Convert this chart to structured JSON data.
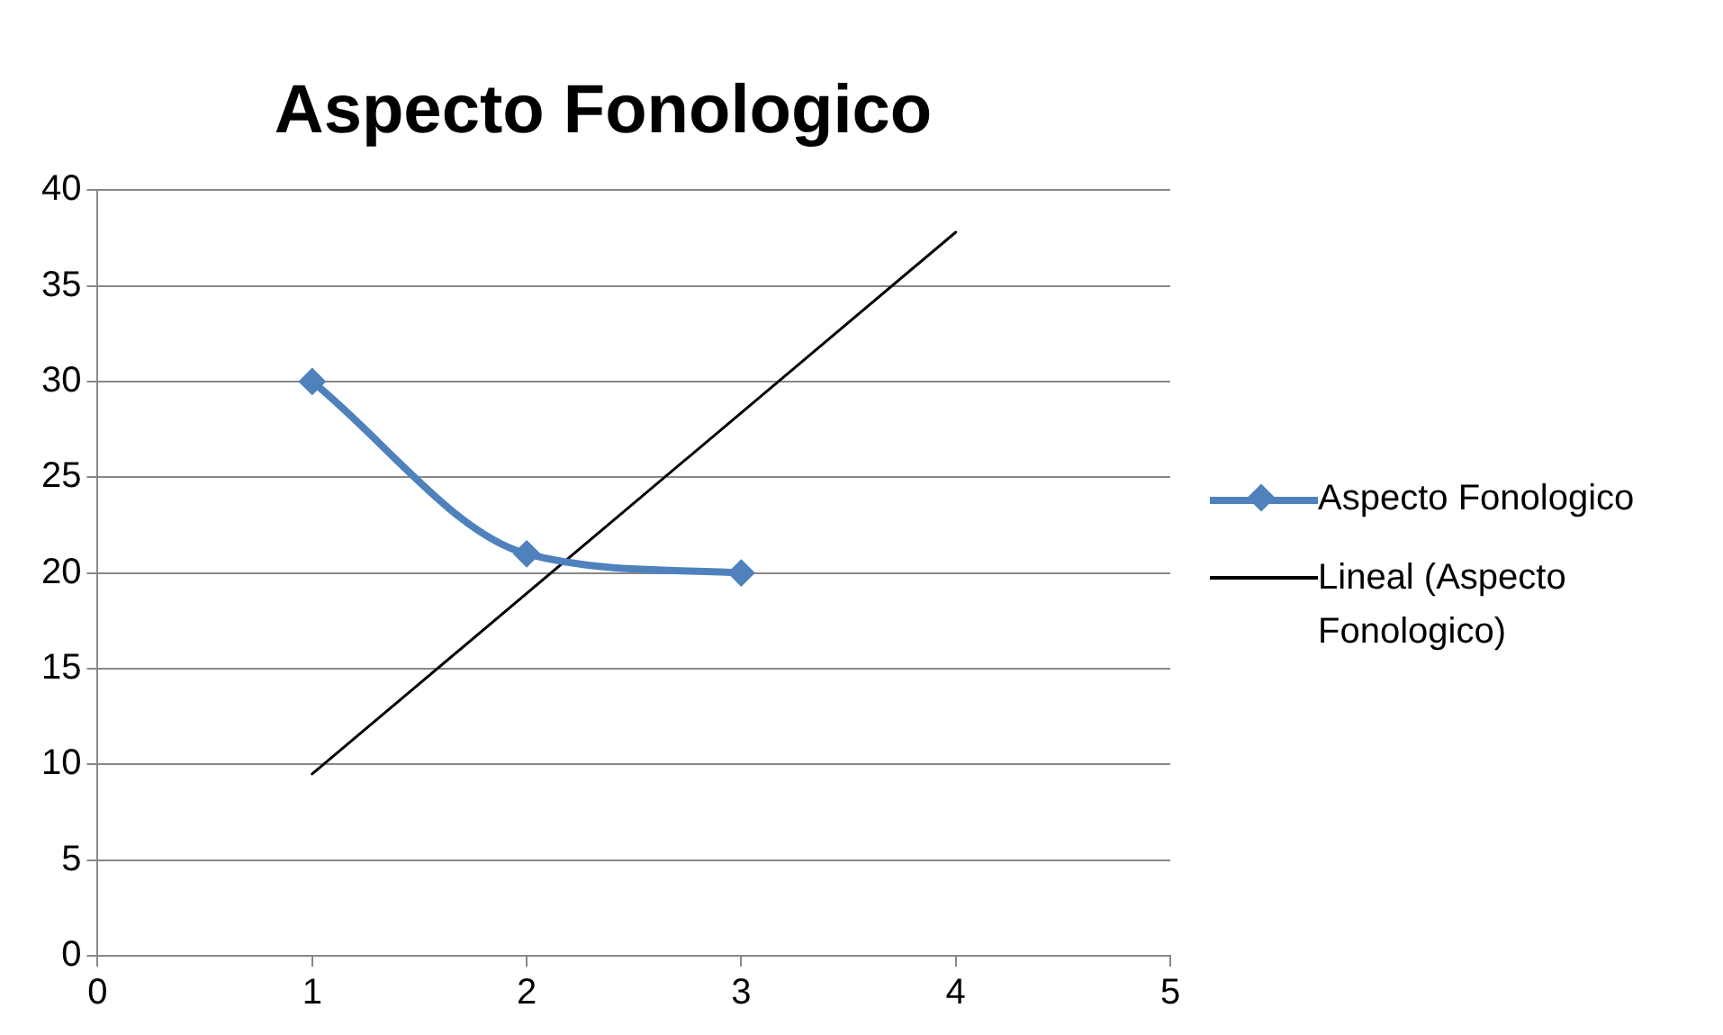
{
  "chart_data": {
    "type": "line",
    "title": "Aspecto Fonologico",
    "xlim": [
      0,
      5
    ],
    "xticks": [
      0,
      1,
      2,
      3,
      4,
      5
    ],
    "ylim": [
      0,
      40
    ],
    "yticks": [
      0,
      5,
      10,
      15,
      20,
      25,
      30,
      35,
      40
    ],
    "grid": "y",
    "legend": "right",
    "marker": "diamond",
    "series": [
      {
        "name": "Aspecto Fonologico",
        "color": "#4f81bd",
        "x": [
          1,
          2,
          3
        ],
        "values": [
          30,
          21,
          20
        ]
      },
      {
        "name": "Lineal (Aspecto Fonologico)",
        "type": "line",
        "color": "#000000",
        "marker": "none",
        "x": [
          1,
          4
        ],
        "values": [
          9.5,
          37.8
        ]
      }
    ]
  }
}
